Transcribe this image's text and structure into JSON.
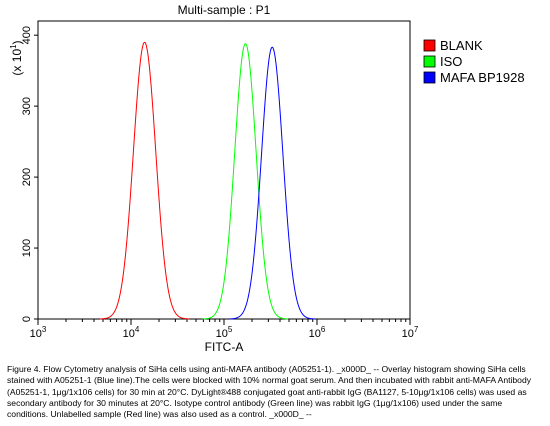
{
  "chart_data": {
    "type": "line",
    "title": "Multi-sample : P1",
    "xlabel": "FITC-A",
    "ylabel_multiplier": "(x 10",
    "ylabel_multiplier_exp": "1",
    "ylabel_multiplier_close": ")",
    "xscale": "log",
    "xlim": [
      1000,
      10000000
    ],
    "ylim": [
      0,
      420
    ],
    "x_ticks": [
      {
        "base": "10",
        "exp": "3",
        "value": 1000
      },
      {
        "base": "10",
        "exp": "4",
        "value": 10000
      },
      {
        "base": "10",
        "exp": "5",
        "value": 100000
      },
      {
        "base": "10",
        "exp": "6",
        "value": 1000000
      },
      {
        "base": "10",
        "exp": "7",
        "value": 10000000
      }
    ],
    "y_ticks": [
      {
        "label": "0",
        "value": 0
      },
      {
        "label": "100",
        "value": 100
      },
      {
        "label": "200",
        "value": 200
      },
      {
        "label": "300",
        "value": 300
      },
      {
        "label": "400",
        "value": 400
      }
    ],
    "grid": false,
    "legend_position": "right",
    "series": [
      {
        "name": "BLANK",
        "color": "#ff0000",
        "peak_x": 14000,
        "peak_y": 390,
        "sigma_log10": 0.12
      },
      {
        "name": "ISO",
        "color": "#00ff00",
        "peak_x": 170000,
        "peak_y": 388,
        "sigma_log10": 0.115
      },
      {
        "name": "MAFA BP1928",
        "color": "#0000ff",
        "peak_x": 330000,
        "peak_y": 383,
        "sigma_log10": 0.115
      }
    ]
  },
  "caption": "Figure 4. Flow Cytometry analysis of SiHa cells using anti-MAFA antibody (A05251-1). _x000D_ -- Overlay histogram showing SiHa cells stained with A05251-1 (Blue line).The cells were blocked with 10% normal goat serum. And then incubated with rabbit anti-MAFA Antibody (A05251-1, 1μg/1x106 cells) for 30 min at 20°C. DyLight®488 conjugated goat anti-rabbit IgG (BA1127, 5-10μg/1x106 cells) was used as secondary antibody for 30 minutes at 20°C. Isotype control antibody (Green line) was rabbit IgG (1μg/1x106) used under the same conditions. Unlabelled sample (Red line) was also used as a control. _x000D_ --"
}
